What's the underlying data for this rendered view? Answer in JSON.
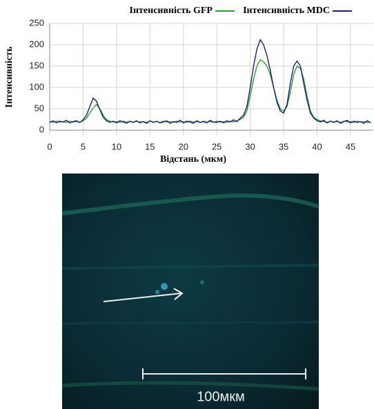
{
  "chart_data": {
    "type": "line",
    "xlabel": "Відстань (мкм)",
    "ylabel": "Інтенсивність",
    "x": [
      0,
      0.5,
      1,
      1.5,
      2,
      2.5,
      3,
      3.5,
      4,
      4.5,
      5,
      5.5,
      6,
      6.5,
      7,
      7.5,
      8,
      8.5,
      9,
      9.5,
      10,
      10.5,
      11,
      11.5,
      12,
      12.5,
      13,
      13.5,
      14,
      14.5,
      15,
      15.5,
      16,
      16.5,
      17,
      17.5,
      18,
      18.5,
      19,
      19.5,
      20,
      20.5,
      21,
      21.5,
      22,
      22.5,
      23,
      23.5,
      24,
      24.5,
      25,
      25.5,
      26,
      26.5,
      27,
      27.5,
      28,
      28.5,
      29,
      29.5,
      30,
      30.5,
      31,
      31.5,
      32,
      32.5,
      33,
      33.5,
      34,
      34.5,
      35,
      35.5,
      36,
      36.5,
      37,
      37.5,
      38,
      38.5,
      39,
      39.5,
      40,
      40.5,
      41,
      41.5,
      42,
      42.5,
      43,
      43.5,
      44,
      44.5,
      45,
      45.5,
      46,
      46.5,
      47,
      47.5,
      48
    ],
    "series": [
      {
        "name": "Інтенсивність GFP",
        "color": "#2e9b2e",
        "values": [
          20,
          18,
          21,
          19,
          20,
          18,
          21,
          19,
          20,
          18,
          22,
          28,
          40,
          52,
          60,
          50,
          35,
          25,
          21,
          19,
          20,
          18,
          21,
          19,
          20,
          18,
          21,
          19,
          20,
          18,
          21,
          19,
          20,
          18,
          21,
          19,
          20,
          18,
          21,
          19,
          20,
          18,
          21,
          19,
          20,
          18,
          21,
          19,
          20,
          18,
          21,
          19,
          20,
          18,
          21,
          19,
          22,
          25,
          30,
          45,
          80,
          120,
          150,
          165,
          160,
          150,
          130,
          100,
          70,
          50,
          45,
          55,
          90,
          130,
          150,
          145,
          120,
          80,
          45,
          30,
          25,
          22,
          20,
          18,
          21,
          19,
          20,
          18,
          21,
          19,
          20,
          18,
          21,
          19,
          20,
          18,
          19
        ]
      },
      {
        "name": "Інтенсивність MDC",
        "color": "#1a1f7a",
        "values": [
          18,
          22,
          17,
          21,
          19,
          23,
          17,
          20,
          22,
          18,
          24,
          35,
          55,
          75,
          68,
          48,
          30,
          22,
          18,
          21,
          17,
          22,
          19,
          16,
          21,
          18,
          22,
          17,
          20,
          16,
          22,
          18,
          21,
          17,
          19,
          22,
          16,
          20,
          18,
          23,
          17,
          21,
          19,
          16,
          22,
          18,
          20,
          17,
          23,
          19,
          18,
          21,
          17,
          22,
          19,
          24,
          20,
          28,
          35,
          55,
          100,
          150,
          190,
          212,
          200,
          175,
          140,
          100,
          65,
          45,
          40,
          60,
          110,
          150,
          162,
          150,
          110,
          70,
          40,
          28,
          22,
          19,
          23,
          17,
          21,
          18,
          22,
          16,
          20,
          23,
          17,
          21,
          18,
          20,
          16,
          22,
          17
        ]
      }
    ],
    "xlim": [
      0,
      48
    ],
    "xticks": [
      0,
      5,
      10,
      15,
      20,
      25,
      30,
      35,
      40,
      45
    ],
    "ylim": [
      0,
      250
    ],
    "yticks": [
      0,
      50,
      100,
      150,
      200,
      250
    ],
    "grid": true
  },
  "image": {
    "scale_bar_label": "100мкм"
  }
}
